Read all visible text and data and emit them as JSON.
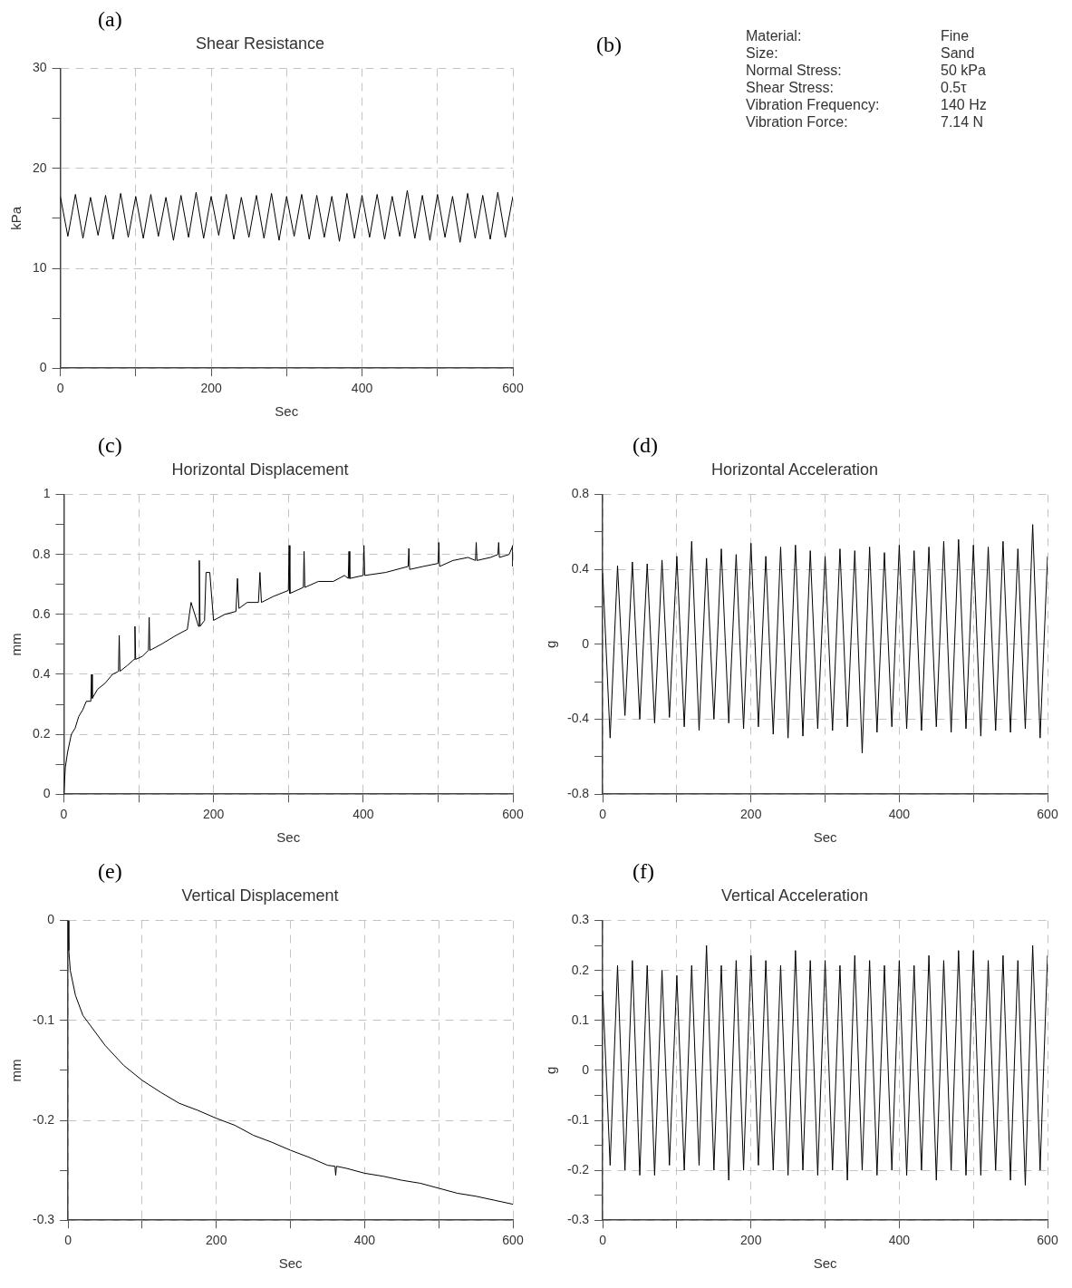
{
  "chart_data": [
    {
      "type": "line",
      "title": "Shear Resistance",
      "xlabel": "Sec",
      "ylabel": "kPa",
      "annotations": [
        "(a)"
      ],
      "xlim": [
        0,
        600
      ],
      "xticks": [
        0,
        {
          "value": 100,
          "label": null
        },
        200,
        {
          "value": 300,
          "label": null
        },
        400,
        {
          "value": 500,
          "label": null
        },
        600
      ],
      "ylim": [
        0,
        30
      ],
      "yticks": [
        0,
        {
          "value": 5,
          "label": null
        },
        10,
        {
          "value": 15,
          "label": null
        },
        20,
        {
          "value": 25,
          "label": null
        },
        30
      ],
      "grid": true,
      "legend": false,
      "marker": "none",
      "line_style": "solid",
      "series": [
        {
          "color": "#000000",
          "x": [
            0,
            10,
            20,
            30,
            40,
            50,
            60,
            70,
            80,
            90,
            100,
            110,
            120,
            130,
            140,
            150,
            160,
            170,
            180,
            190,
            200,
            210,
            220,
            230,
            240,
            250,
            260,
            270,
            280,
            290,
            300,
            310,
            320,
            330,
            340,
            350,
            360,
            370,
            380,
            390,
            400,
            410,
            420,
            430,
            440,
            450,
            460,
            470,
            480,
            490,
            500,
            510,
            520,
            530,
            540,
            550,
            560,
            570,
            580,
            590,
            600
          ],
          "values": [
            17.2,
            13.2,
            17.4,
            13.0,
            17.1,
            13.3,
            17.3,
            12.9,
            17.5,
            13.1,
            17.2,
            13.0,
            17.4,
            13.2,
            17.1,
            12.8,
            17.3,
            13.1,
            17.6,
            13.0,
            17.2,
            13.3,
            17.4,
            12.9,
            17.1,
            13.1,
            17.3,
            13.0,
            17.5,
            12.8,
            17.2,
            13.2,
            17.4,
            12.9,
            17.3,
            13.1,
            17.2,
            12.7,
            17.5,
            13.0,
            17.3,
            13.1,
            17.4,
            12.9,
            17.2,
            13.2,
            17.8,
            13.0,
            17.3,
            12.8,
            17.4,
            13.1,
            17.2,
            12.6,
            17.5,
            13.0,
            17.3,
            12.9,
            17.6,
            13.1,
            17.2
          ]
        }
      ]
    },
    {
      "type": "other",
      "annotations": [
        "(b)",
        "Material:",
        "Fine",
        "Size:",
        "Sand",
        "Normal Stress:",
        "50 kPa",
        "Shear Stress:",
        "0.5τ",
        "Vibration Frequency:",
        "140 Hz",
        "Vibration Force:",
        "7.14 N"
      ]
    },
    {
      "type": "line",
      "title": "Horizontal Displacement",
      "xlabel": "Sec",
      "ylabel": "mm",
      "annotations": [
        "(c)"
      ],
      "xlim": [
        0,
        600
      ],
      "xticks": [
        0,
        {
          "value": 100,
          "label": null
        },
        200,
        {
          "value": 300,
          "label": null
        },
        400,
        {
          "value": 500,
          "label": null
        },
        600
      ],
      "ylim": [
        0,
        1
      ],
      "yticks": [
        0,
        {
          "value": 0.1,
          "label": null
        },
        0.2,
        {
          "value": 0.3,
          "label": null
        },
        0.4,
        {
          "value": 0.5,
          "label": null
        },
        0.6,
        {
          "value": 0.7,
          "label": null
        },
        0.8,
        {
          "value": 0.9,
          "label": null
        },
        1
      ],
      "grid": true,
      "legend": false,
      "marker": "none",
      "line_style": "solid",
      "series": [
        {
          "color": "#000000",
          "x": [
            0,
            2,
            5,
            10,
            15,
            20,
            25,
            30,
            36,
            37,
            38,
            45,
            55,
            65,
            73,
            74,
            75,
            85,
            94,
            95,
            96,
            105,
            113,
            114,
            115,
            130,
            150,
            165,
            170,
            180,
            181,
            182,
            188,
            190,
            195,
            200,
            215,
            230,
            232,
            234,
            245,
            255,
            260,
            262,
            264,
            280,
            300,
            301,
            302,
            320,
            321,
            322,
            340,
            360,
            375,
            380,
            381,
            382,
            400,
            401,
            402,
            430,
            460,
            461,
            462,
            480,
            500,
            501,
            502,
            520,
            540,
            550,
            551,
            552,
            570,
            580,
            581,
            582,
            595,
            600,
            600
          ],
          "values": [
            0,
            0.09,
            0.14,
            0.2,
            0.22,
            0.26,
            0.28,
            0.31,
            0.31,
            0.4,
            0.32,
            0.35,
            0.37,
            0.4,
            0.41,
            0.53,
            0.41,
            0.43,
            0.45,
            0.56,
            0.45,
            0.46,
            0.48,
            0.59,
            0.48,
            0.5,
            0.53,
            0.55,
            0.64,
            0.56,
            0.78,
            0.56,
            0.58,
            0.74,
            0.74,
            0.58,
            0.6,
            0.61,
            0.72,
            0.62,
            0.64,
            0.64,
            0.64,
            0.74,
            0.64,
            0.66,
            0.68,
            0.83,
            0.67,
            0.69,
            0.81,
            0.69,
            0.71,
            0.71,
            0.73,
            0.72,
            0.81,
            0.72,
            0.73,
            0.83,
            0.73,
            0.74,
            0.76,
            0.82,
            0.75,
            0.76,
            0.77,
            0.84,
            0.76,
            0.78,
            0.79,
            0.78,
            0.84,
            0.78,
            0.79,
            0.8,
            0.84,
            0.79,
            0.8,
            0.83,
            0.76
          ]
        }
      ]
    },
    {
      "type": "line",
      "title": "Horizontal Acceleration",
      "xlabel": "Sec",
      "ylabel": "g",
      "annotations": [
        "(d)"
      ],
      "xlim": [
        0,
        600
      ],
      "xticks": [
        0,
        {
          "value": 100,
          "label": null
        },
        200,
        {
          "value": 300,
          "label": null
        },
        400,
        {
          "value": 500,
          "label": null
        },
        600
      ],
      "ylim": [
        -0.8,
        0.8
      ],
      "yticks": [
        -0.8,
        {
          "value": -0.6,
          "label": null
        },
        -0.4,
        {
          "value": -0.2,
          "label": null
        },
        0,
        {
          "value": 0.2,
          "label": null
        },
        0.4,
        {
          "value": 0.6,
          "label": null
        },
        0.8
      ],
      "grid": true,
      "legend": false,
      "marker": "none",
      "line_style": "solid",
      "series": [
        {
          "color": "#000000",
          "x": [
            0,
            10,
            20,
            30,
            40,
            50,
            60,
            70,
            80,
            90,
            100,
            110,
            120,
            130,
            140,
            150,
            160,
            170,
            180,
            190,
            200,
            210,
            220,
            230,
            240,
            250,
            260,
            270,
            280,
            290,
            300,
            310,
            320,
            330,
            340,
            350,
            360,
            370,
            380,
            390,
            400,
            410,
            420,
            430,
            440,
            450,
            460,
            470,
            480,
            490,
            500,
            510,
            520,
            530,
            540,
            550,
            560,
            570,
            580,
            590,
            600
          ],
          "values": [
            0.38,
            -0.5,
            0.42,
            -0.38,
            0.44,
            -0.4,
            0.43,
            -0.42,
            0.45,
            -0.39,
            0.47,
            -0.44,
            0.55,
            -0.46,
            0.46,
            -0.4,
            0.51,
            -0.42,
            0.48,
            -0.45,
            0.54,
            -0.44,
            0.47,
            -0.48,
            0.52,
            -0.5,
            0.53,
            -0.49,
            0.5,
            -0.45,
            0.47,
            -0.46,
            0.51,
            -0.44,
            0.5,
            -0.58,
            0.52,
            -0.47,
            0.49,
            -0.44,
            0.53,
            -0.45,
            0.5,
            -0.46,
            0.52,
            -0.44,
            0.55,
            -0.47,
            0.56,
            -0.45,
            0.53,
            -0.49,
            0.52,
            -0.46,
            0.55,
            -0.47,
            0.51,
            -0.45,
            0.64,
            -0.5,
            0.47
          ]
        }
      ]
    },
    {
      "type": "line",
      "title": "Vertical Displacement",
      "xlabel": "Sec",
      "ylabel": "mm",
      "annotations": [
        "(e)"
      ],
      "xlim": [
        0,
        600
      ],
      "xticks": [
        0,
        {
          "value": 100,
          "label": null
        },
        200,
        {
          "value": 300,
          "label": null
        },
        400,
        {
          "value": 500,
          "label": null
        },
        600
      ],
      "ylim": [
        -0.3,
        0
      ],
      "yticks": [
        -0.3,
        {
          "value": -0.25,
          "label": null
        },
        -0.2,
        {
          "value": -0.15,
          "label": null
        },
        -0.1,
        {
          "value": -0.05,
          "label": null
        },
        0
      ],
      "grid": true,
      "legend": false,
      "marker": "none",
      "line_style": "solid",
      "series": [
        {
          "color": "#000000",
          "x": [
            0,
            1,
            3,
            10,
            20,
            30,
            50,
            75,
            100,
            125,
            150,
            175,
            200,
            225,
            250,
            275,
            300,
            325,
            350,
            360,
            361,
            362,
            375,
            400,
            425,
            450,
            475,
            500,
            525,
            550,
            575,
            600
          ],
          "values": [
            0,
            -0.03,
            -0.05,
            -0.075,
            -0.095,
            -0.105,
            -0.125,
            -0.145,
            -0.16,
            -0.172,
            -0.183,
            -0.19,
            -0.198,
            -0.205,
            -0.215,
            -0.222,
            -0.23,
            -0.237,
            -0.245,
            -0.246,
            -0.255,
            -0.246,
            -0.248,
            -0.253,
            -0.256,
            -0.26,
            -0.263,
            -0.268,
            -0.273,
            -0.276,
            -0.28,
            -0.284
          ]
        }
      ]
    },
    {
      "type": "line",
      "title": "Vertical Acceleration",
      "xlabel": "Sec",
      "ylabel": "g",
      "annotations": [
        "(f)"
      ],
      "xlim": [
        0,
        600
      ],
      "xticks": [
        0,
        {
          "value": 100,
          "label": null
        },
        200,
        {
          "value": 300,
          "label": null
        },
        400,
        {
          "value": 500,
          "label": null
        },
        600
      ],
      "ylim": [
        -0.3,
        0.3
      ],
      "yticks": [
        -0.3,
        {
          "value": -0.25,
          "label": null
        },
        -0.2,
        {
          "value": -0.15,
          "label": null
        },
        -0.1,
        {
          "value": -0.05,
          "label": null
        },
        0,
        {
          "value": 0.05,
          "label": null
        },
        0.1,
        {
          "value": 0.15,
          "label": null
        },
        0.2,
        {
          "value": 0.25,
          "label": null
        },
        0.3
      ],
      "grid": true,
      "legend": false,
      "marker": "none",
      "line_style": "solid",
      "series": [
        {
          "color": "#000000",
          "x": [
            0,
            10,
            20,
            30,
            40,
            50,
            60,
            70,
            80,
            90,
            100,
            110,
            120,
            130,
            140,
            150,
            160,
            170,
            180,
            190,
            200,
            210,
            220,
            230,
            240,
            250,
            260,
            270,
            280,
            290,
            300,
            310,
            320,
            330,
            340,
            350,
            360,
            370,
            380,
            390,
            400,
            410,
            420,
            430,
            440,
            450,
            460,
            470,
            480,
            490,
            500,
            510,
            520,
            530,
            540,
            550,
            560,
            570,
            580,
            590,
            600
          ],
          "values": [
            0.16,
            -0.19,
            0.21,
            -0.2,
            0.22,
            -0.21,
            0.21,
            -0.21,
            0.2,
            -0.19,
            0.19,
            -0.2,
            0.21,
            -0.19,
            0.25,
            -0.2,
            0.21,
            -0.22,
            0.22,
            -0.2,
            0.23,
            -0.19,
            0.22,
            -0.2,
            0.21,
            -0.21,
            0.24,
            -0.2,
            0.22,
            -0.21,
            0.22,
            -0.2,
            0.21,
            -0.22,
            0.23,
            -0.2,
            0.22,
            -0.21,
            0.21,
            -0.2,
            0.22,
            -0.21,
            0.21,
            -0.2,
            0.23,
            -0.22,
            0.22,
            -0.2,
            0.24,
            -0.21,
            0.24,
            -0.21,
            0.22,
            -0.2,
            0.23,
            -0.22,
            0.22,
            -0.23,
            0.25,
            -0.2,
            0.23
          ]
        }
      ]
    }
  ]
}
